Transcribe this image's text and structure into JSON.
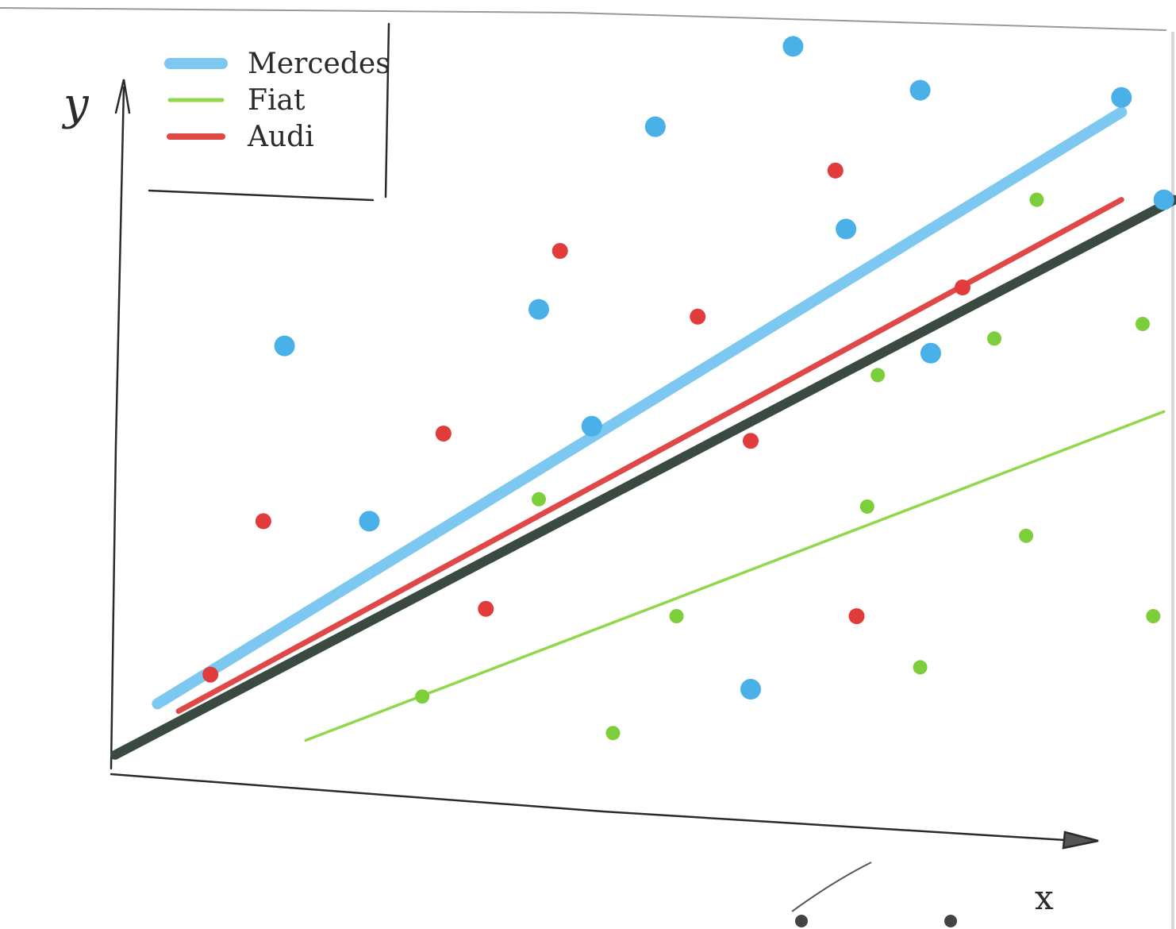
{
  "chart_data": {
    "type": "scatter",
    "title": "",
    "xlabel": "x",
    "ylabel": "y",
    "xlim": [
      0,
      100
    ],
    "ylim": [
      0,
      100
    ],
    "grid": false,
    "legend_position": "top-left",
    "series": [
      {
        "name": "Mercedes",
        "color": "#4ab0e8",
        "line_color": "#7cc8f0",
        "points": [
          [
            16,
            57
          ],
          [
            24,
            33
          ],
          [
            40,
            62
          ],
          [
            45,
            46
          ],
          [
            51,
            87
          ],
          [
            60,
            10
          ],
          [
            64,
            98
          ],
          [
            69,
            73
          ],
          [
            76,
            92
          ],
          [
            77,
            56
          ],
          [
            95,
            91
          ],
          [
            99,
            77
          ]
        ],
        "trend": [
          [
            4,
            8
          ],
          [
            95,
            89
          ]
        ]
      },
      {
        "name": "Fiat",
        "color": "#7ccf3a",
        "line_color": "#90d84a",
        "points": [
          [
            29,
            9
          ],
          [
            47,
            4
          ],
          [
            40,
            36
          ],
          [
            53,
            20
          ],
          [
            71,
            35
          ],
          [
            72,
            53
          ],
          [
            76,
            13
          ],
          [
            83,
            58
          ],
          [
            86,
            31
          ],
          [
            87,
            77
          ],
          [
            98,
            20
          ],
          [
            97,
            60
          ]
        ],
        "trend": [
          [
            18,
            3
          ],
          [
            99,
            48
          ]
        ]
      },
      {
        "name": "Audi",
        "color": "#e23b3b",
        "line_color": "#e04848",
        "points": [
          [
            14,
            33
          ],
          [
            31,
            45
          ],
          [
            35,
            21
          ],
          [
            42,
            70
          ],
          [
            55,
            61
          ],
          [
            60,
            44
          ],
          [
            68,
            81
          ],
          [
            70,
            20
          ],
          [
            80,
            65
          ],
          [
            9,
            12
          ]
        ],
        "trend": [
          [
            6,
            7
          ],
          [
            95,
            77
          ]
        ]
      }
    ],
    "reference_line": {
      "color": "#3a4a40",
      "points": [
        [
          0,
          1
        ],
        [
          100,
          77
        ]
      ]
    }
  }
}
